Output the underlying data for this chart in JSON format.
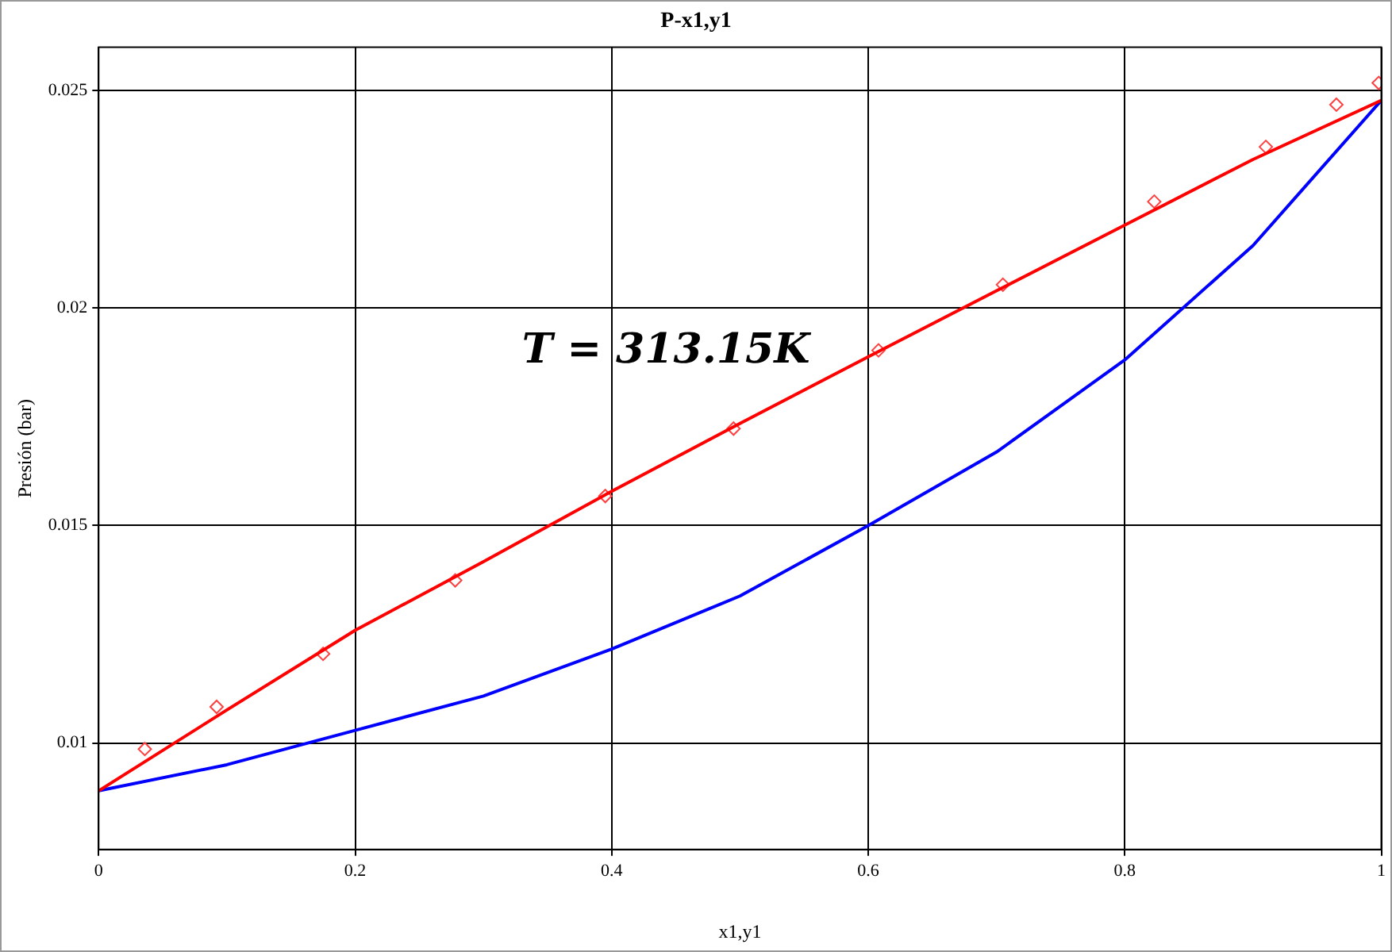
{
  "chart_data": {
    "type": "line",
    "title": "P-x1,y1",
    "xlabel": "x1,y1",
    "ylabel": "Presión (bar)",
    "annotations": [
      "T = 313.15K"
    ],
    "xlim": [
      0,
      1
    ],
    "xticks": [
      0,
      0.2,
      0.4,
      0.6,
      0.8,
      1
    ],
    "ylim": [
      0.00755,
      0.026
    ],
    "yticks": [
      0.01,
      0.015,
      0.02,
      0.025
    ],
    "grid": true,
    "legend": false,
    "series": [
      {
        "color": "#ff0000",
        "marker": "none",
        "x": [
          0,
          0.1,
          0.2,
          0.3,
          0.4,
          0.5,
          0.6,
          0.7,
          0.8,
          0.9,
          1
        ],
        "values": [
          0.0089,
          0.01076,
          0.01259,
          0.01417,
          0.01579,
          0.01735,
          0.01888,
          0.0204,
          0.02191,
          0.02342,
          0.02478
        ]
      },
      {
        "color": "#0000ff",
        "marker": "none",
        "x": [
          0,
          0.1,
          0.2,
          0.3,
          0.4,
          0.5,
          0.6,
          0.7,
          0.8,
          0.9,
          1
        ],
        "values": [
          0.0089,
          0.0095,
          0.01029,
          0.01108,
          0.01216,
          0.01338,
          0.015,
          0.01669,
          0.01881,
          0.02144,
          0.02478
        ]
      },
      {
        "type": "scatter",
        "color": "#ff4040",
        "marker": "diamond",
        "x": [
          0.036,
          0.092,
          0.175,
          0.278,
          0.395,
          0.495,
          0.608,
          0.705,
          0.823,
          0.91,
          0.965,
          0.998
        ],
        "values": [
          0.00986,
          0.01083,
          0.01205,
          0.01374,
          0.01568,
          0.01723,
          0.01903,
          0.02054,
          0.02245,
          0.02371,
          0.02468,
          0.02518
        ]
      }
    ]
  }
}
